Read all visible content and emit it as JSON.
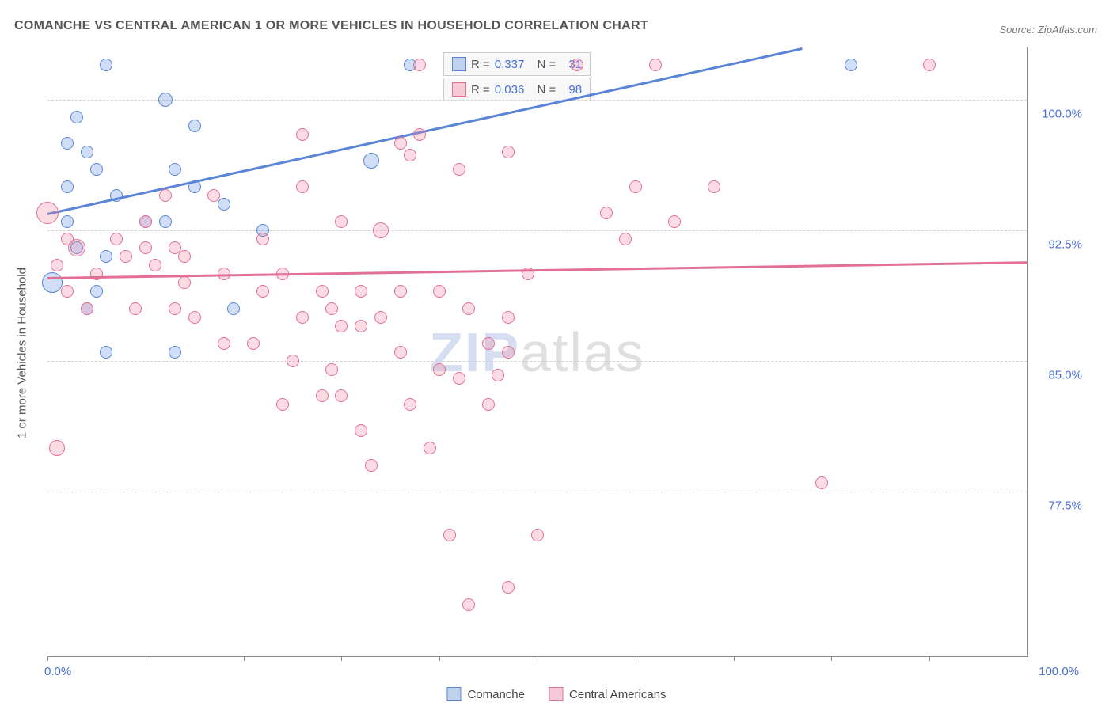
{
  "title": "COMANCHE VS CENTRAL AMERICAN 1 OR MORE VEHICLES IN HOUSEHOLD CORRELATION CHART",
  "source_label": "Source:",
  "source_name": "ZipAtlas.com",
  "yaxis_title": "1 or more Vehicles in Household",
  "watermark": {
    "part1": "ZIP",
    "part2": "atlas"
  },
  "chart": {
    "type": "scatter",
    "xlim": [
      0,
      100
    ],
    "ylim": [
      68,
      103
    ],
    "ytick_step": 7.5,
    "yticks": [
      77.5,
      85.0,
      92.5,
      100.0
    ],
    "ytick_labels": [
      "77.5%",
      "85.0%",
      "92.5%",
      "100.0%"
    ],
    "xaxis_min_label": "0.0%",
    "xaxis_max_label": "100.0%",
    "xticks": [
      0,
      10,
      20,
      30,
      40,
      50,
      60,
      70,
      80,
      90,
      100
    ],
    "background_color": "#ffffff",
    "grid_color": "#d0d0d0"
  },
  "series": [
    {
      "name": "Comanche",
      "color_fill": "rgba(100,150,230,0.30)",
      "color_stroke": "#5a85d6",
      "swatch_fill": "#bfd3ef",
      "swatch_border": "#5a85d6",
      "R": "0.337",
      "N": "31",
      "trend": {
        "x1": 0,
        "y1": 93.5,
        "x2": 77,
        "y2": 103
      },
      "points": [
        {
          "x": 6,
          "y": 102,
          "r": 8
        },
        {
          "x": 37,
          "y": 102,
          "r": 8
        },
        {
          "x": 82,
          "y": 102,
          "r": 8
        },
        {
          "x": 12,
          "y": 100,
          "r": 9
        },
        {
          "x": 3,
          "y": 99,
          "r": 8
        },
        {
          "x": 15,
          "y": 98.5,
          "r": 8
        },
        {
          "x": 2,
          "y": 97.5,
          "r": 8
        },
        {
          "x": 4,
          "y": 97,
          "r": 8
        },
        {
          "x": 5,
          "y": 96,
          "r": 8
        },
        {
          "x": 13,
          "y": 96,
          "r": 8
        },
        {
          "x": 33,
          "y": 96.5,
          "r": 10
        },
        {
          "x": 2,
          "y": 95,
          "r": 8
        },
        {
          "x": 7,
          "y": 94.5,
          "r": 8
        },
        {
          "x": 15,
          "y": 95,
          "r": 8
        },
        {
          "x": 18,
          "y": 94,
          "r": 8
        },
        {
          "x": 2,
          "y": 93,
          "r": 8
        },
        {
          "x": 10,
          "y": 93,
          "r": 8
        },
        {
          "x": 12,
          "y": 93,
          "r": 8
        },
        {
          "x": 22,
          "y": 92.5,
          "r": 8
        },
        {
          "x": 3,
          "y": 91.5,
          "r": 8
        },
        {
          "x": 6,
          "y": 91,
          "r": 8
        },
        {
          "x": 0.5,
          "y": 89.5,
          "r": 13
        },
        {
          "x": 5,
          "y": 89,
          "r": 8
        },
        {
          "x": 4,
          "y": 88,
          "r": 8
        },
        {
          "x": 19,
          "y": 88,
          "r": 8
        },
        {
          "x": 6,
          "y": 85.5,
          "r": 8
        },
        {
          "x": 13,
          "y": 85.5,
          "r": 8
        }
      ]
    },
    {
      "name": "Central Americans",
      "color_fill": "rgba(240,130,160,0.28)",
      "color_stroke": "#e26f94",
      "swatch_fill": "#f6c9d6",
      "swatch_border": "#e26f94",
      "R": "0.036",
      "N": "98",
      "trend": {
        "x1": 0,
        "y1": 89.8,
        "x2": 100,
        "y2": 90.7
      },
      "points": [
        {
          "x": 38,
          "y": 102,
          "r": 8
        },
        {
          "x": 54,
          "y": 102,
          "r": 8
        },
        {
          "x": 62,
          "y": 102,
          "r": 8
        },
        {
          "x": 90,
          "y": 102,
          "r": 8
        },
        {
          "x": 26,
          "y": 98,
          "r": 8
        },
        {
          "x": 36,
          "y": 97.5,
          "r": 8
        },
        {
          "x": 37,
          "y": 96.8,
          "r": 8
        },
        {
          "x": 38,
          "y": 98,
          "r": 8
        },
        {
          "x": 42,
          "y": 96,
          "r": 8
        },
        {
          "x": 47,
          "y": 97,
          "r": 8
        },
        {
          "x": 12,
          "y": 94.5,
          "r": 8
        },
        {
          "x": 17,
          "y": 94.5,
          "r": 8
        },
        {
          "x": 26,
          "y": 95,
          "r": 8
        },
        {
          "x": 60,
          "y": 95,
          "r": 8
        },
        {
          "x": 68,
          "y": 95,
          "r": 8
        },
        {
          "x": 0,
          "y": 93.5,
          "r": 14
        },
        {
          "x": 10,
          "y": 93,
          "r": 8
        },
        {
          "x": 30,
          "y": 93,
          "r": 8
        },
        {
          "x": 34,
          "y": 92.5,
          "r": 10
        },
        {
          "x": 57,
          "y": 93.5,
          "r": 8
        },
        {
          "x": 64,
          "y": 93,
          "r": 8
        },
        {
          "x": 2,
          "y": 92,
          "r": 8
        },
        {
          "x": 3,
          "y": 91.5,
          "r": 11
        },
        {
          "x": 7,
          "y": 92,
          "r": 8
        },
        {
          "x": 8,
          "y": 91,
          "r": 8
        },
        {
          "x": 10,
          "y": 91.5,
          "r": 8
        },
        {
          "x": 13,
          "y": 91.5,
          "r": 8
        },
        {
          "x": 14,
          "y": 91,
          "r": 8
        },
        {
          "x": 22,
          "y": 92,
          "r": 8
        },
        {
          "x": 59,
          "y": 92,
          "r": 8
        },
        {
          "x": 1,
          "y": 90.5,
          "r": 8
        },
        {
          "x": 5,
          "y": 90,
          "r": 8
        },
        {
          "x": 11,
          "y": 90.5,
          "r": 8
        },
        {
          "x": 18,
          "y": 90,
          "r": 8
        },
        {
          "x": 24,
          "y": 90,
          "r": 8
        },
        {
          "x": 49,
          "y": 90,
          "r": 8
        },
        {
          "x": 2,
          "y": 89,
          "r": 8
        },
        {
          "x": 14,
          "y": 89.5,
          "r": 8
        },
        {
          "x": 22,
          "y": 89,
          "r": 8
        },
        {
          "x": 28,
          "y": 89,
          "r": 8
        },
        {
          "x": 32,
          "y": 89,
          "r": 8
        },
        {
          "x": 36,
          "y": 89,
          "r": 8
        },
        {
          "x": 40,
          "y": 89,
          "r": 8
        },
        {
          "x": 4,
          "y": 88,
          "r": 8
        },
        {
          "x": 9,
          "y": 88,
          "r": 8
        },
        {
          "x": 13,
          "y": 88,
          "r": 8
        },
        {
          "x": 15,
          "y": 87.5,
          "r": 8
        },
        {
          "x": 26,
          "y": 87.5,
          "r": 8
        },
        {
          "x": 29,
          "y": 88,
          "r": 8
        },
        {
          "x": 30,
          "y": 87,
          "r": 8
        },
        {
          "x": 32,
          "y": 87,
          "r": 8
        },
        {
          "x": 34,
          "y": 87.5,
          "r": 8
        },
        {
          "x": 43,
          "y": 88,
          "r": 8
        },
        {
          "x": 47,
          "y": 87.5,
          "r": 8
        },
        {
          "x": 18,
          "y": 86,
          "r": 8
        },
        {
          "x": 21,
          "y": 86,
          "r": 8
        },
        {
          "x": 36,
          "y": 85.5,
          "r": 8
        },
        {
          "x": 45,
          "y": 86,
          "r": 8
        },
        {
          "x": 47,
          "y": 85.5,
          "r": 8
        },
        {
          "x": 25,
          "y": 85,
          "r": 8
        },
        {
          "x": 29,
          "y": 84.5,
          "r": 8
        },
        {
          "x": 40,
          "y": 84.5,
          "r": 8
        },
        {
          "x": 42,
          "y": 84,
          "r": 8
        },
        {
          "x": 46,
          "y": 84.2,
          "r": 8
        },
        {
          "x": 28,
          "y": 83,
          "r": 8
        },
        {
          "x": 30,
          "y": 83,
          "r": 8
        },
        {
          "x": 24,
          "y": 82.5,
          "r": 8
        },
        {
          "x": 37,
          "y": 82.5,
          "r": 8
        },
        {
          "x": 45,
          "y": 82.5,
          "r": 8
        },
        {
          "x": 1,
          "y": 80,
          "r": 10
        },
        {
          "x": 32,
          "y": 81,
          "r": 8
        },
        {
          "x": 33,
          "y": 79,
          "r": 8
        },
        {
          "x": 39,
          "y": 80,
          "r": 8
        },
        {
          "x": 79,
          "y": 78,
          "r": 8
        },
        {
          "x": 41,
          "y": 75,
          "r": 8
        },
        {
          "x": 50,
          "y": 75,
          "r": 8
        },
        {
          "x": 43,
          "y": 71,
          "r": 8
        },
        {
          "x": 47,
          "y": 72,
          "r": 8
        }
      ]
    }
  ],
  "legend_stats_labels": {
    "R": "R =",
    "N": "N ="
  },
  "bottom_legend": [
    {
      "label": "Comanche",
      "fill": "#bfd3ef",
      "border": "#5a85d6"
    },
    {
      "label": "Central Americans",
      "fill": "#f6c9d6",
      "border": "#e26f94"
    }
  ]
}
